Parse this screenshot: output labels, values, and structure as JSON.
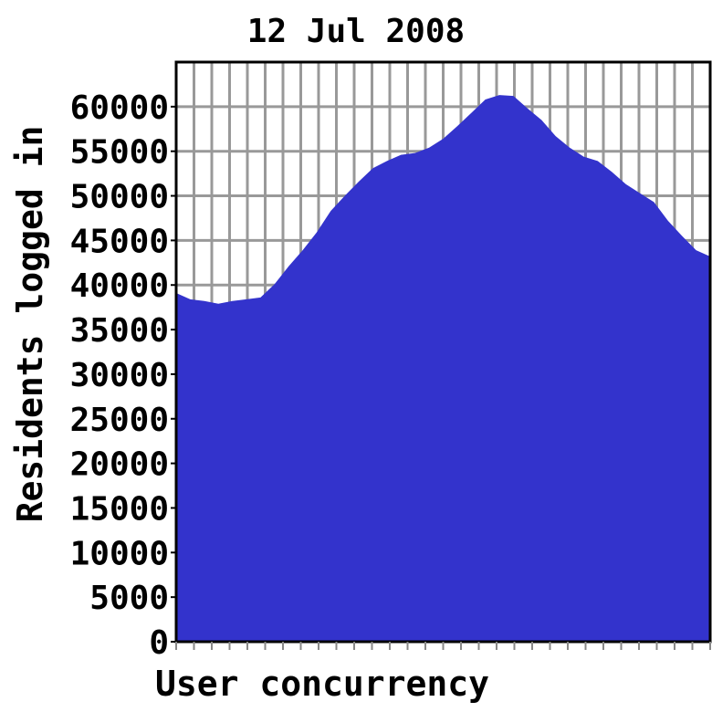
{
  "chart_data": {
    "type": "area",
    "title": "12 Jul 2008",
    "xlabel": "User concurrency",
    "ylabel": "Residents logged in",
    "ylim": [
      0,
      65000
    ],
    "yticks": [
      0,
      5000,
      10000,
      15000,
      20000,
      25000,
      30000,
      35000,
      40000,
      45000,
      50000,
      55000,
      60000
    ],
    "x_gridlines": 30,
    "grid": true,
    "colors": {
      "fill": "#3333cc",
      "grid": "#999999",
      "axis": "#000000"
    },
    "values": [
      39100,
      38400,
      38200,
      37900,
      38200,
      38400,
      38600,
      40100,
      42100,
      43900,
      45900,
      48300,
      50000,
      51600,
      53100,
      53900,
      54600,
      54800,
      55400,
      56400,
      57800,
      59300,
      60800,
      61300,
      61200,
      59800,
      58500,
      56700,
      55400,
      54400,
      53900,
      52700,
      51300,
      50300,
      49300,
      47200,
      45500,
      43900,
      43200
    ]
  }
}
